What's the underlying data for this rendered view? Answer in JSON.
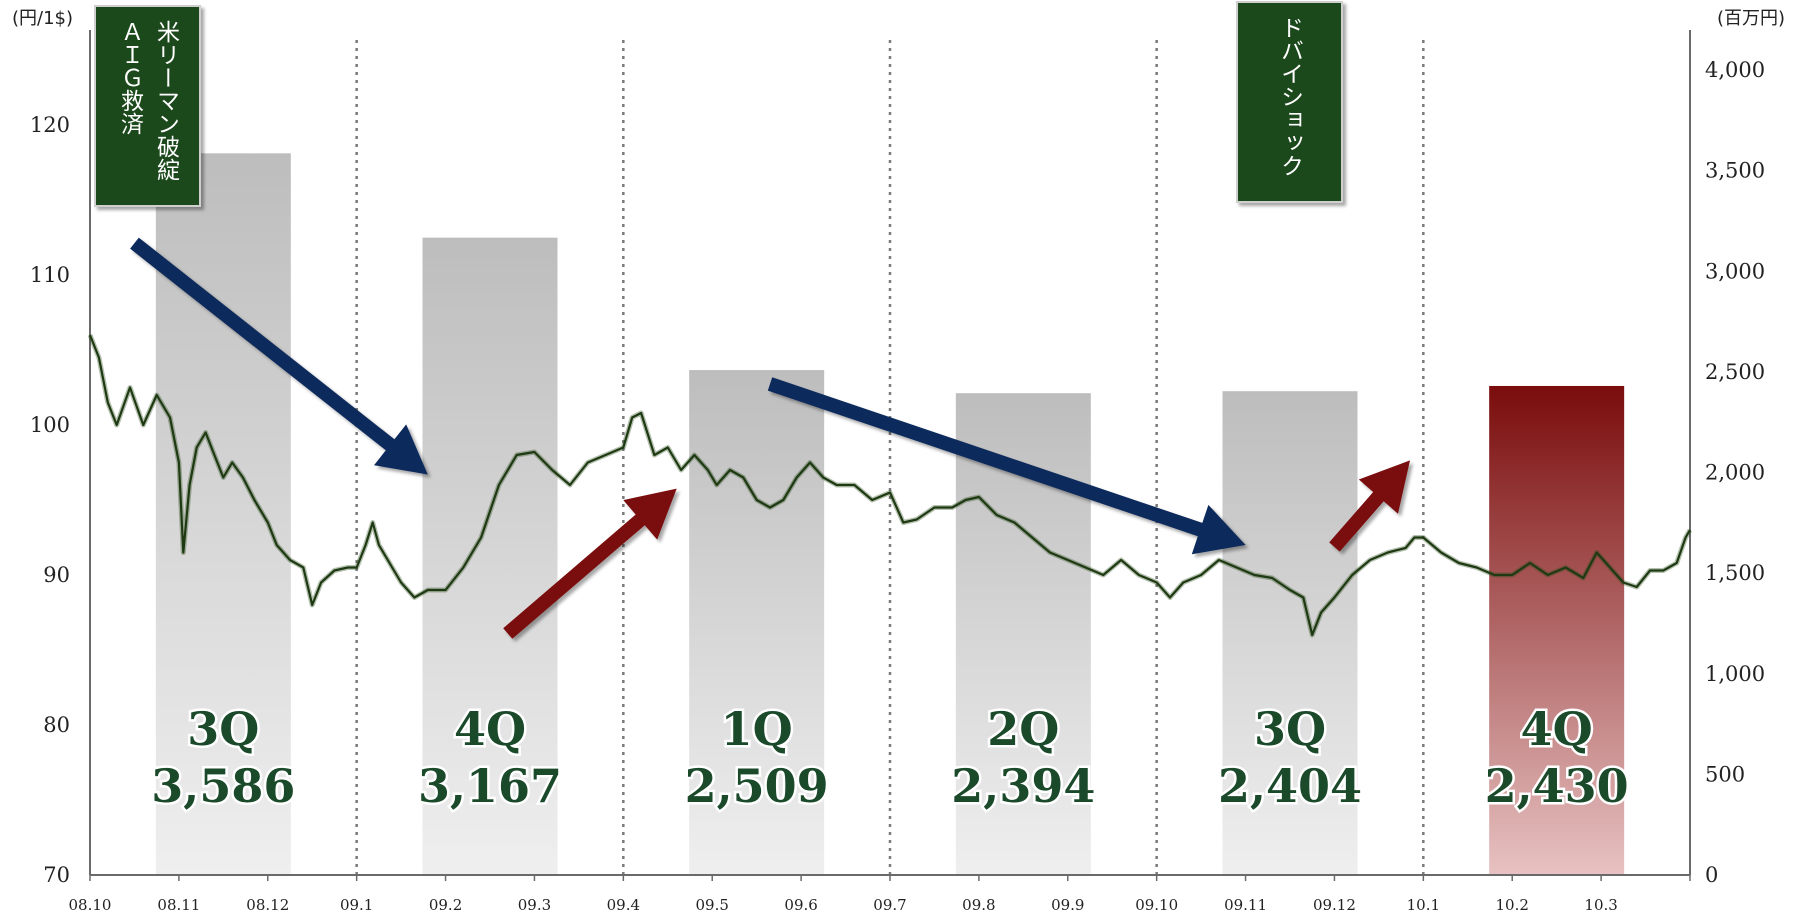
{
  "chart_data": {
    "type": "bar+line",
    "left_axis": {
      "unit_label": "(円/1$)",
      "ticks": [
        70,
        80,
        90,
        100,
        110,
        120
      ],
      "range": [
        70,
        125
      ]
    },
    "right_axis": {
      "unit_label": "(百万円)",
      "ticks": [
        "0",
        "500",
        "1,000",
        "1,500",
        "2,000",
        "2,500",
        "3,000",
        "3,500",
        "4,000"
      ],
      "range": [
        0,
        4000
      ]
    },
    "x_labels": [
      "08.10",
      "08.11",
      "08.12",
      "09.1",
      "09.2",
      "09.3",
      "09.4",
      "09.5",
      "09.6",
      "09.7",
      "09.8",
      "09.9",
      "09.10",
      "09.11",
      "09.12",
      "10.1",
      "10.2",
      "10.3"
    ],
    "quarter_bars": [
      {
        "quarter": "3Q",
        "value": 3586,
        "value_label": "3,586",
        "month_pos": 1.5,
        "highlight": false
      },
      {
        "quarter": "4Q",
        "value": 3167,
        "value_label": "3,167",
        "month_pos": 4.5,
        "highlight": false
      },
      {
        "quarter": "1Q",
        "value": 2509,
        "value_label": "2,509",
        "month_pos": 7.5,
        "highlight": false
      },
      {
        "quarter": "2Q",
        "value": 2394,
        "value_label": "2,394",
        "month_pos": 10.5,
        "highlight": false
      },
      {
        "quarter": "3Q",
        "value": 2404,
        "value_label": "2,404",
        "month_pos": 13.5,
        "highlight": false
      },
      {
        "quarter": "4Q",
        "value": 2430,
        "value_label": "2,430",
        "month_pos": 16.5,
        "highlight": true
      }
    ],
    "exchange_rate_series": [
      [
        0,
        106
      ],
      [
        0.1,
        104.5
      ],
      [
        0.2,
        101.5
      ],
      [
        0.3,
        100
      ],
      [
        0.45,
        102.5
      ],
      [
        0.6,
        100
      ],
      [
        0.75,
        102
      ],
      [
        0.9,
        100.5
      ],
      [
        1.0,
        97.5
      ],
      [
        1.05,
        91.5
      ],
      [
        1.12,
        96
      ],
      [
        1.2,
        98.5
      ],
      [
        1.3,
        99.5
      ],
      [
        1.4,
        98
      ],
      [
        1.5,
        96.5
      ],
      [
        1.6,
        97.5
      ],
      [
        1.72,
        96.5
      ],
      [
        1.85,
        95
      ],
      [
        2.0,
        93.5
      ],
      [
        2.1,
        92
      ],
      [
        2.25,
        91
      ],
      [
        2.4,
        90.5
      ],
      [
        2.5,
        88
      ],
      [
        2.6,
        89.5
      ],
      [
        2.75,
        90.3
      ],
      [
        2.9,
        90.5
      ],
      [
        3.0,
        90.5
      ],
      [
        3.1,
        92
      ],
      [
        3.18,
        93.5
      ],
      [
        3.25,
        92
      ],
      [
        3.4,
        90.5
      ],
      [
        3.5,
        89.5
      ],
      [
        3.65,
        88.5
      ],
      [
        3.8,
        89
      ],
      [
        4.0,
        89
      ],
      [
        4.2,
        90.5
      ],
      [
        4.4,
        92.5
      ],
      [
        4.6,
        96
      ],
      [
        4.8,
        98
      ],
      [
        5.0,
        98.2
      ],
      [
        5.2,
        97
      ],
      [
        5.4,
        96
      ],
      [
        5.6,
        97.5
      ],
      [
        5.8,
        98
      ],
      [
        6.0,
        98.5
      ],
      [
        6.1,
        100.5
      ],
      [
        6.2,
        100.8
      ],
      [
        6.35,
        98
      ],
      [
        6.5,
        98.5
      ],
      [
        6.65,
        97
      ],
      [
        6.8,
        98
      ],
      [
        6.95,
        97
      ],
      [
        7.05,
        96
      ],
      [
        7.2,
        97
      ],
      [
        7.35,
        96.5
      ],
      [
        7.5,
        95
      ],
      [
        7.65,
        94.5
      ],
      [
        7.8,
        95
      ],
      [
        7.95,
        96.5
      ],
      [
        8.1,
        97.5
      ],
      [
        8.25,
        96.5
      ],
      [
        8.4,
        96
      ],
      [
        8.6,
        96
      ],
      [
        8.8,
        95
      ],
      [
        9.0,
        95.5
      ],
      [
        9.15,
        93.5
      ],
      [
        9.3,
        93.7
      ],
      [
        9.5,
        94.5
      ],
      [
        9.7,
        94.5
      ],
      [
        9.85,
        95
      ],
      [
        10.0,
        95.2
      ],
      [
        10.2,
        94
      ],
      [
        10.4,
        93.5
      ],
      [
        10.6,
        92.5
      ],
      [
        10.8,
        91.5
      ],
      [
        11.0,
        91
      ],
      [
        11.2,
        90.5
      ],
      [
        11.4,
        90
      ],
      [
        11.6,
        91
      ],
      [
        11.8,
        90
      ],
      [
        12.0,
        89.5
      ],
      [
        12.15,
        88.5
      ],
      [
        12.3,
        89.5
      ],
      [
        12.5,
        90
      ],
      [
        12.7,
        91
      ],
      [
        12.9,
        90.5
      ],
      [
        13.1,
        90
      ],
      [
        13.3,
        89.8
      ],
      [
        13.5,
        89
      ],
      [
        13.65,
        88.5
      ],
      [
        13.75,
        86
      ],
      [
        13.85,
        87.5
      ],
      [
        14.0,
        88.5
      ],
      [
        14.2,
        90
      ],
      [
        14.4,
        91
      ],
      [
        14.6,
        91.5
      ],
      [
        14.8,
        91.8
      ],
      [
        14.9,
        92.5
      ],
      [
        15.0,
        92.5
      ],
      [
        15.1,
        92
      ],
      [
        15.2,
        91.5
      ],
      [
        15.4,
        90.8
      ],
      [
        15.6,
        90.5
      ],
      [
        15.8,
        90
      ],
      [
        16.0,
        90
      ],
      [
        16.2,
        90.8
      ],
      [
        16.4,
        90
      ],
      [
        16.6,
        90.5
      ],
      [
        16.8,
        89.8
      ],
      [
        16.95,
        91.5
      ],
      [
        17.1,
        90.5
      ],
      [
        17.25,
        89.5
      ],
      [
        17.4,
        89.2
      ],
      [
        17.55,
        90.3
      ],
      [
        17.7,
        90.3
      ],
      [
        17.85,
        90.8
      ],
      [
        17.95,
        92.5
      ],
      [
        18.0,
        93
      ]
    ],
    "events": [
      {
        "id": "lehman",
        "lines": [
          "米リーマン破綻",
          "ＡＩＧ救済"
        ]
      },
      {
        "id": "dubai",
        "lines": [
          "ドバイショック"
        ]
      }
    ],
    "annotations": [
      {
        "type": "arrow",
        "color": "#0e2a5c",
        "from": [
          0.5,
          3140
        ],
        "to": [
          3.8,
          1990
        ]
      },
      {
        "type": "arrow",
        "color": "#7a0c0c",
        "from": [
          4.7,
          1200
        ],
        "to": [
          6.6,
          1920
        ]
      },
      {
        "type": "arrow",
        "color": "#0e2a5c",
        "from": [
          7.65,
          2440
        ],
        "to": [
          13.0,
          1640
        ]
      },
      {
        "type": "arrow",
        "color": "#7a0c0c",
        "from": [
          14.0,
          1630
        ],
        "to": [
          14.85,
          2060
        ]
      }
    ],
    "grid": "dotted vertical lines at year boundaries (09.1, 09.4, 09.7, 09.10, 10.1)",
    "colors": {
      "bar_gray_top": "#bdbdbd",
      "bar_gray_bottom": "#efefef",
      "bar_red_top": "#7a0c0c",
      "bar_red_bottom": "#e8c2c2",
      "line": "#1e3a12",
      "event_box": "#1c4a1c"
    }
  }
}
